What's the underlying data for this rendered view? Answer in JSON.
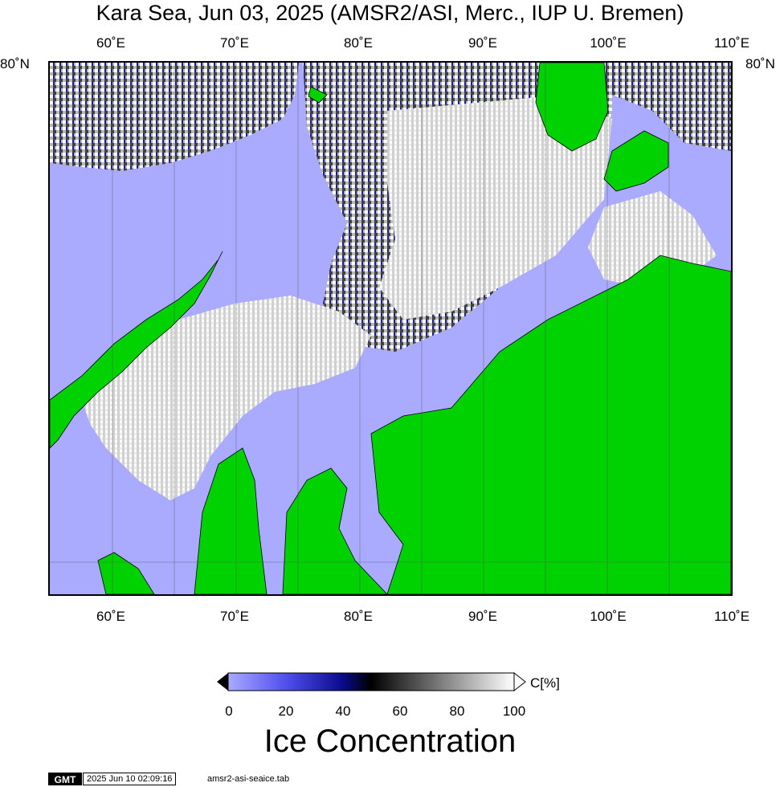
{
  "title": "Kara Sea, Jun 03, 2025 (AMSR2/ASI, Merc., IUP U. Bremen)",
  "map": {
    "lon_ticks": [
      "60˚E",
      "70˚E",
      "80˚E",
      "90˚E",
      "100˚E",
      "110˚E"
    ],
    "lat_tick": "80˚N",
    "colors": {
      "water": "#aaaaff",
      "land": "#00d100",
      "ice": "#f2f2f2",
      "edge": "#1a1aa0"
    }
  },
  "colorbar": {
    "ticks": [
      "0",
      "20",
      "40",
      "60",
      "80",
      "100"
    ],
    "unit": "C[%]",
    "label": "Ice Concentration",
    "stops": [
      "#aaaaff",
      "#5050ee",
      "#0a0a8c",
      "#000000",
      "#808080",
      "#ffffff"
    ]
  },
  "footer": {
    "logo": "GMT",
    "timestamp": "2025 Jun 10 02:09:16",
    "filename": "amsr2-asi-seaice.tab"
  }
}
